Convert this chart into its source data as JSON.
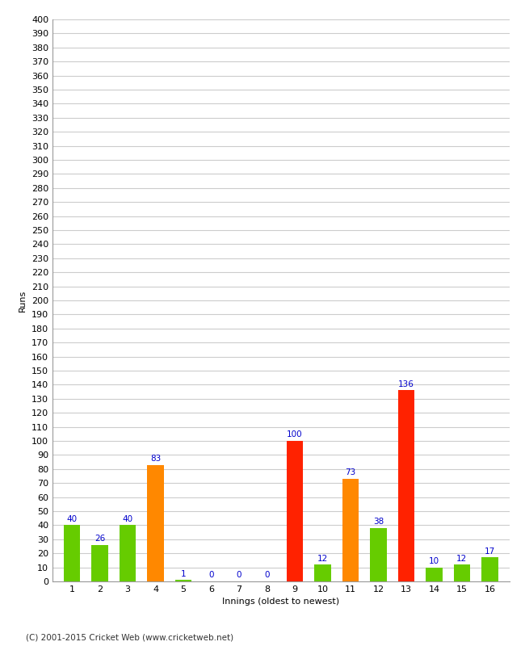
{
  "innings": [
    1,
    2,
    3,
    4,
    5,
    6,
    7,
    8,
    9,
    10,
    11,
    12,
    13,
    14,
    15,
    16
  ],
  "values": [
    40,
    26,
    40,
    83,
    1,
    0,
    0,
    0,
    100,
    12,
    73,
    38,
    136,
    10,
    12,
    17
  ],
  "colors": [
    "#66cc00",
    "#66cc00",
    "#66cc00",
    "#ff8800",
    "#66cc00",
    "#66cc00",
    "#66cc00",
    "#66cc00",
    "#ff2200",
    "#66cc00",
    "#ff8800",
    "#66cc00",
    "#ff2200",
    "#66cc00",
    "#66cc00",
    "#66cc00"
  ],
  "ylabel": "Runs",
  "xlabel": "Innings (oldest to newest)",
  "ylim": [
    0,
    400
  ],
  "ytick_step": 10,
  "label_color": "#0000cc",
  "label_fontsize": 7.5,
  "axis_tick_fontsize": 8,
  "background_color": "#ffffff",
  "grid_color": "#cccccc",
  "footer": "(C) 2001-2015 Cricket Web (www.cricketweb.net)"
}
